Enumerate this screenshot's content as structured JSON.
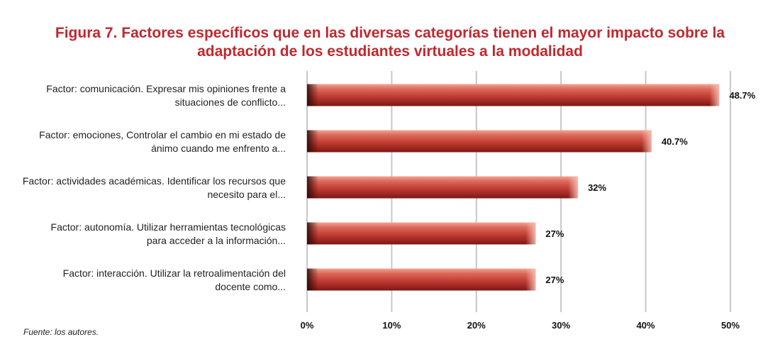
{
  "figure": {
    "title_line1": "Figura 7. Factores específicos que en las diversas categorías tienen el mayor impacto sobre la",
    "title_line2": "adaptación de los estudiantes virtuales a la modalidad",
    "source": "Fuente: los autores."
  },
  "chart_data": {
    "type": "bar",
    "orientation": "horizontal",
    "title": "Figura 7. Factores específicos que en las diversas categorías tienen el mayor impacto sobre la adaptación de los estudiantes virtuales a la modalidad",
    "categories": [
      [
        "Factor: comunicación. Expresar mis opiniones frente a",
        "situaciones de conflicto..."
      ],
      [
        "Factor: emociones, Controlar el cambio en mi estado de",
        "ánimo cuando me enfrento a..."
      ],
      [
        "Factor: actividades académicas. Identificar los recursos que",
        "necesito para el..."
      ],
      [
        "Factor: autonomía. Utilizar herramientas tecnológicas",
        "para acceder a la información..."
      ],
      [
        "Factor: interacción. Utilizar la retroalimentación del",
        "docente como..."
      ]
    ],
    "values": [
      48.7,
      40.7,
      32,
      27,
      27
    ],
    "data_labels": [
      "48.7%",
      "40.7%",
      "32%",
      "27%",
      "27%"
    ],
    "xlim": [
      0,
      50
    ],
    "xticks": [
      "0%",
      "10%",
      "20%",
      "30%",
      "40%",
      "50%"
    ],
    "grid": true,
    "bar_color": "#c8413a",
    "grid_color": "#c8c8c8"
  }
}
